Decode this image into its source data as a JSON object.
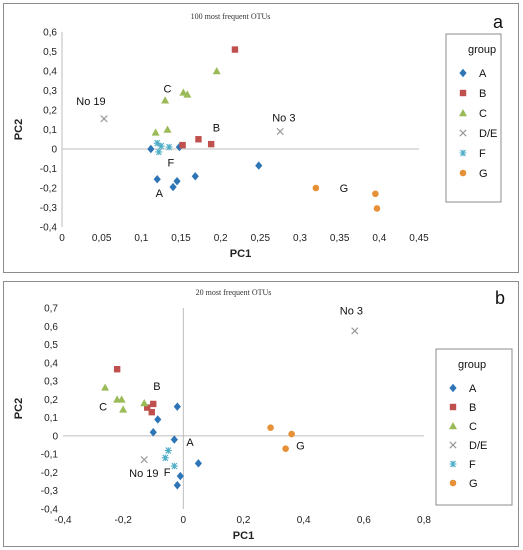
{
  "chart_data": [
    {
      "type": "scatter",
      "title": "100 most frequent OTUs",
      "panel_label": "a",
      "xlabel": "PC1",
      "ylabel": "PC2",
      "xlim": [
        0,
        0.45
      ],
      "ylim": [
        -0.4,
        0.6
      ],
      "xticks": [
        "0",
        "0,05",
        "0,1",
        "0,15",
        "0,2",
        "0,25",
        "0,3",
        "0,35",
        "0,4",
        "0,45"
      ],
      "yticks": [
        "-0,4",
        "-0,3",
        "-0,2",
        "-0,1",
        "0",
        "0,1",
        "0,2",
        "0,3",
        "0,4",
        "0,5",
        "0,6"
      ],
      "grid": false,
      "legend": {
        "title": "group",
        "position": "right"
      },
      "series": [
        {
          "name": "A",
          "marker": "diamond",
          "color": "#2e75b6",
          "points": [
            [
              0.112,
              0.0
            ],
            [
              0.12,
              -0.155
            ],
            [
              0.14,
              -0.195
            ],
            [
              0.145,
              -0.165
            ],
            [
              0.168,
              -0.14
            ],
            [
              0.148,
              0.01
            ],
            [
              0.248,
              -0.085
            ]
          ]
        },
        {
          "name": "B",
          "marker": "square",
          "color": "#c0504d",
          "points": [
            [
              0.218,
              0.51
            ],
            [
              0.152,
              0.02
            ],
            [
              0.172,
              0.05
            ],
            [
              0.188,
              0.025
            ]
          ]
        },
        {
          "name": "C",
          "marker": "triangle",
          "color": "#9bbb59",
          "points": [
            [
              0.13,
              0.25
            ],
            [
              0.153,
              0.29
            ],
            [
              0.158,
              0.28
            ],
            [
              0.195,
              0.4
            ],
            [
              0.118,
              0.085
            ],
            [
              0.133,
              0.1
            ]
          ]
        },
        {
          "name": "D/E",
          "marker": "x",
          "color": "#9a9a9a",
          "points": [
            [
              0.053,
              0.155
            ],
            [
              0.275,
              0.09
            ]
          ]
        },
        {
          "name": "F",
          "marker": "star",
          "color": "#4bacc6",
          "points": [
            [
              0.12,
              0.03
            ],
            [
              0.125,
              0.015
            ],
            [
              0.135,
              0.01
            ],
            [
              0.122,
              -0.015
            ]
          ]
        },
        {
          "name": "G",
          "marker": "circle",
          "color": "#e69138",
          "points": [
            [
              0.32,
              -0.2
            ],
            [
              0.395,
              -0.23
            ],
            [
              0.397,
              -0.305
            ]
          ]
        }
      ],
      "annotations": [
        {
          "text": "No 19",
          "x": 0.018,
          "y": 0.225
        },
        {
          "text": "C",
          "x": 0.128,
          "y": 0.29
        },
        {
          "text": "No 3",
          "x": 0.265,
          "y": 0.14
        },
        {
          "text": "B",
          "x": 0.19,
          "y": 0.09
        },
        {
          "text": "F",
          "x": 0.133,
          "y": -0.09
        },
        {
          "text": "A",
          "x": 0.118,
          "y": -0.245
        },
        {
          "text": "G",
          "x": 0.35,
          "y": -0.22
        }
      ]
    },
    {
      "type": "scatter",
      "title": "20 most frequent OTUs",
      "panel_label": "b",
      "xlabel": "PC1",
      "ylabel": "PC2",
      "xlim": [
        -0.4,
        0.8
      ],
      "ylim": [
        -0.4,
        0.7
      ],
      "xticks": [
        "-0,4",
        "-0,2",
        "0",
        "0,2",
        "0,4",
        "0,6",
        "0,8"
      ],
      "yticks": [
        "-0,4",
        "-0,3",
        "-0,2",
        "-0,1",
        "0",
        "0,1",
        "0,2",
        "0,3",
        "0,4",
        "0,5",
        "0,6",
        "0,7"
      ],
      "grid": false,
      "legend": {
        "title": "group",
        "position": "right"
      },
      "series": [
        {
          "name": "A",
          "marker": "diamond",
          "color": "#2e75b6",
          "points": [
            [
              -0.02,
              0.16
            ],
            [
              -0.1,
              0.02
            ],
            [
              -0.085,
              0.09
            ],
            [
              -0.03,
              -0.02
            ],
            [
              -0.01,
              -0.22
            ],
            [
              -0.02,
              -0.27
            ],
            [
              0.05,
              -0.15
            ]
          ]
        },
        {
          "name": "B",
          "marker": "square",
          "color": "#c0504d",
          "points": [
            [
              -0.22,
              0.365
            ],
            [
              -0.12,
              0.155
            ],
            [
              -0.1,
              0.175
            ],
            [
              -0.105,
              0.13
            ]
          ]
        },
        {
          "name": "C",
          "marker": "triangle",
          "color": "#9bbb59",
          "points": [
            [
              -0.26,
              0.265
            ],
            [
              -0.22,
              0.2
            ],
            [
              -0.205,
              0.2
            ],
            [
              -0.2,
              0.145
            ],
            [
              -0.13,
              0.18
            ]
          ]
        },
        {
          "name": "D/E",
          "marker": "x",
          "color": "#9a9a9a",
          "points": [
            [
              -0.13,
              -0.13
            ],
            [
              0.57,
              0.575
            ]
          ]
        },
        {
          "name": "F",
          "marker": "star",
          "color": "#4bacc6",
          "points": [
            [
              -0.05,
              -0.08
            ],
            [
              -0.06,
              -0.12
            ],
            [
              -0.03,
              -0.165
            ]
          ]
        },
        {
          "name": "G",
          "marker": "circle",
          "color": "#e69138",
          "points": [
            [
              0.29,
              0.045
            ],
            [
              0.34,
              -0.07
            ],
            [
              0.36,
              0.01
            ]
          ]
        }
      ],
      "annotations": [
        {
          "text": "No 3",
          "x": 0.52,
          "y": 0.665
        },
        {
          "text": "B",
          "x": -0.1,
          "y": 0.25
        },
        {
          "text": "C",
          "x": -0.28,
          "y": 0.14
        },
        {
          "text": "A",
          "x": 0.01,
          "y": -0.055
        },
        {
          "text": "No 19",
          "x": -0.18,
          "y": -0.225
        },
        {
          "text": "F",
          "x": -0.065,
          "y": -0.22
        },
        {
          "text": "G",
          "x": 0.375,
          "y": -0.075
        }
      ]
    }
  ]
}
